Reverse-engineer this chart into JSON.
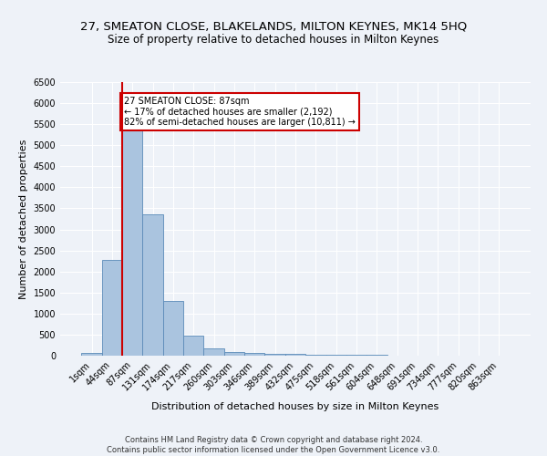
{
  "title_line1": "27, SMEATON CLOSE, BLAKELANDS, MILTON KEYNES, MK14 5HQ",
  "title_line2": "Size of property relative to detached houses in Milton Keynes",
  "xlabel": "Distribution of detached houses by size in Milton Keynes",
  "ylabel": "Number of detached properties",
  "footnote": "Contains HM Land Registry data © Crown copyright and database right 2024.\nContains public sector information licensed under the Open Government Licence v3.0.",
  "bin_labels": [
    "1sqm",
    "44sqm",
    "87sqm",
    "131sqm",
    "174sqm",
    "217sqm",
    "260sqm",
    "303sqm",
    "346sqm",
    "389sqm",
    "432sqm",
    "475sqm",
    "518sqm",
    "561sqm",
    "604sqm",
    "648sqm",
    "691sqm",
    "734sqm",
    "777sqm",
    "820sqm",
    "863sqm"
  ],
  "bar_values": [
    75,
    2270,
    5430,
    3360,
    1290,
    480,
    170,
    90,
    55,
    45,
    35,
    30,
    25,
    20,
    15,
    10,
    8,
    6,
    5,
    4,
    3
  ],
  "bar_color": "#aac4df",
  "bar_edge_color": "#5a8ab8",
  "vline_x_index": 2,
  "vline_color": "#cc0000",
  "annotation_text": "27 SMEATON CLOSE: 87sqm\n← 17% of detached houses are smaller (2,192)\n82% of semi-detached houses are larger (10,811) →",
  "annotation_box_color": "#ffffff",
  "annotation_box_edge": "#cc0000",
  "ylim": [
    0,
    6500
  ],
  "yticks": [
    0,
    500,
    1000,
    1500,
    2000,
    2500,
    3000,
    3500,
    4000,
    4500,
    5000,
    5500,
    6000,
    6500
  ],
  "background_color": "#eef2f8",
  "grid_color": "#ffffff",
  "title_fontsize": 9.5,
  "subtitle_fontsize": 8.5,
  "axis_label_fontsize": 8,
  "tick_fontsize": 7,
  "footnote_fontsize": 6
}
